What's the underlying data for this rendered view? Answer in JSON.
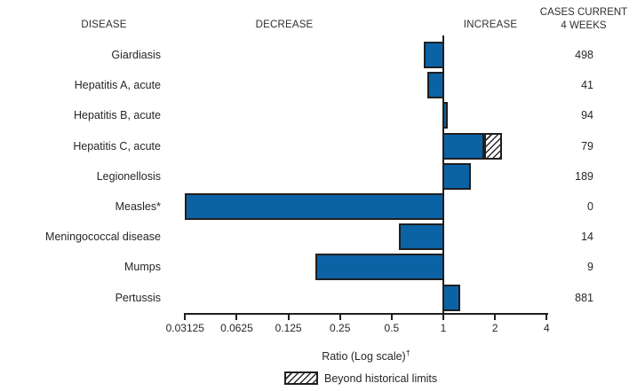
{
  "colors": {
    "bar_fill": "#0b63a5",
    "line": "#1f1f1f",
    "text": "#262626",
    "background": "#ffffff"
  },
  "headers": {
    "disease": "DISEASE",
    "decrease": "DECREASE",
    "increase": "INCREASE",
    "cases_line1": "CASES CURRENT",
    "cases_line2": "4 WEEKS"
  },
  "chart_data": {
    "type": "bar",
    "orientation": "horizontal",
    "scale": "log2",
    "axis": {
      "label": "Ratio (Log scale)",
      "label_superscript": "†",
      "ticks": [
        0.03125,
        0.0625,
        0.125,
        0.25,
        0.5,
        1,
        2,
        4
      ],
      "tick_labels": [
        "0.03125",
        "0.0625",
        "0.125",
        "0.25",
        "0.5",
        "1",
        "2",
        "4"
      ],
      "range": [
        0.03125,
        4
      ],
      "baseline": 1,
      "grid": false
    },
    "rows": [
      {
        "label": "Giardiasis",
        "ratio": 0.77,
        "cases": "498"
      },
      {
        "label": "Hepatitis A, acute",
        "ratio": 0.81,
        "cases": "41"
      },
      {
        "label": "Hepatitis B, acute",
        "ratio": 1.06,
        "cases": "94"
      },
      {
        "label": "Hepatitis C, acute",
        "ratio": 2.2,
        "beyond_from": 1.73,
        "cases": "79"
      },
      {
        "label": "Legionellosis",
        "ratio": 1.45,
        "cases": "189"
      },
      {
        "label": "Measles*",
        "ratio": 0.03125,
        "cases": "0"
      },
      {
        "label": "Meningococcal disease",
        "ratio": 0.55,
        "cases": "14"
      },
      {
        "label": "Mumps",
        "ratio": 0.18,
        "cases": "9"
      },
      {
        "label": "Pertussis",
        "ratio": 1.25,
        "cases": "881"
      }
    ],
    "legend": {
      "swatch": "hatched",
      "label": "Beyond historical limits"
    }
  }
}
